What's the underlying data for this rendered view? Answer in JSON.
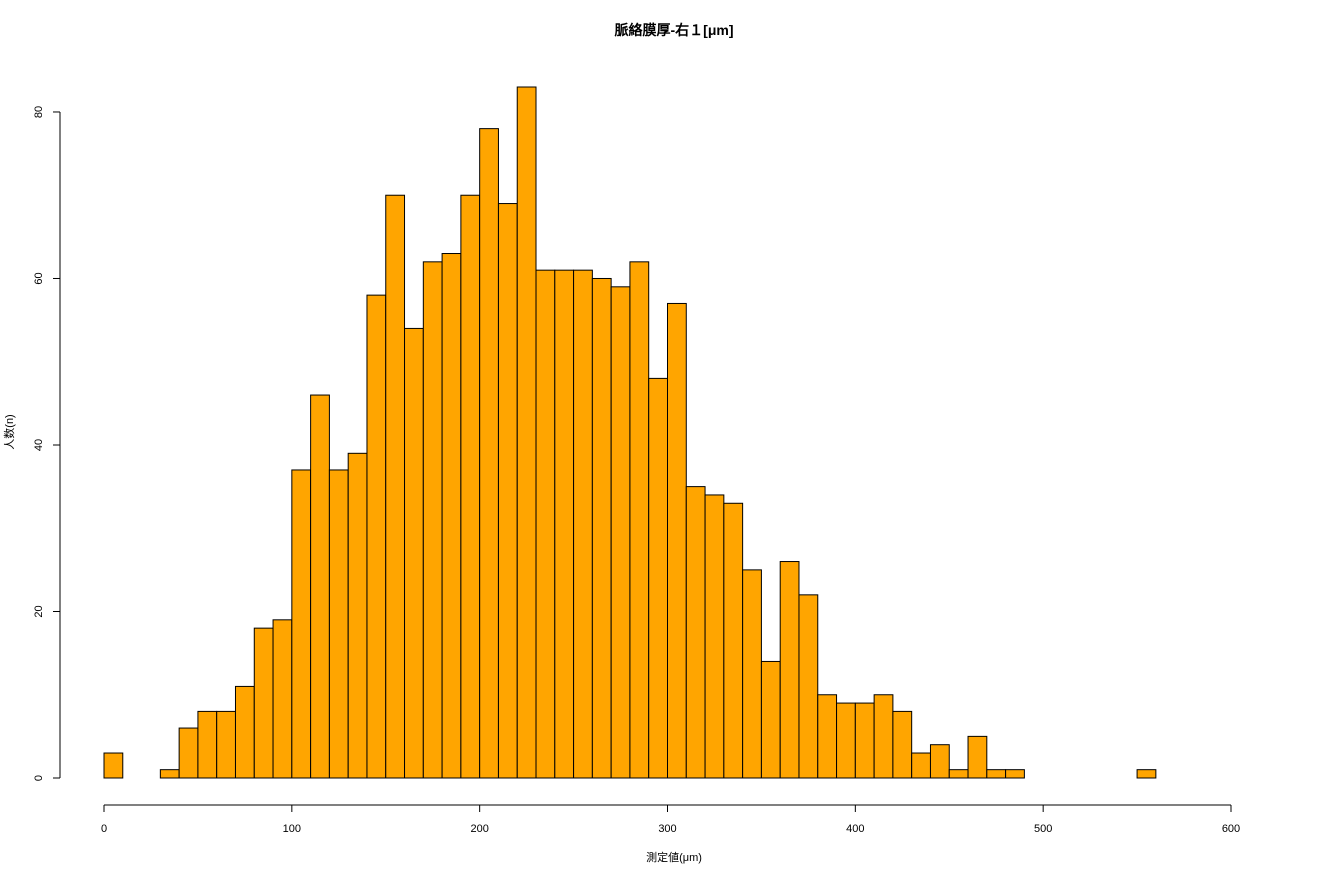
{
  "chart_data": {
    "type": "bar",
    "title": "脈絡膜厚-右１[μm]",
    "xlabel": "測定値(μm)",
    "ylabel": "人数(n)",
    "bin_width": 10,
    "x_start": 0,
    "xlim": [
      0,
      600
    ],
    "ylim": [
      0,
      83
    ],
    "x_ticks": [
      0,
      100,
      200,
      300,
      400,
      500,
      600
    ],
    "y_ticks": [
      0,
      20,
      40,
      60,
      80
    ],
    "bar_fill": "#FFA500",
    "bar_stroke": "#000000",
    "grid": false,
    "legend": "none",
    "values": [
      3,
      0,
      0,
      1,
      6,
      8,
      8,
      11,
      18,
      19,
      37,
      46,
      37,
      39,
      58,
      70,
      54,
      62,
      63,
      70,
      78,
      69,
      83,
      61,
      61,
      61,
      60,
      59,
      62,
      48,
      57,
      35,
      34,
      33,
      25,
      14,
      26,
      22,
      10,
      9,
      9,
      10,
      8,
      3,
      4,
      1,
      5,
      1,
      1,
      0,
      0,
      0,
      0,
      0,
      0,
      1
    ]
  }
}
